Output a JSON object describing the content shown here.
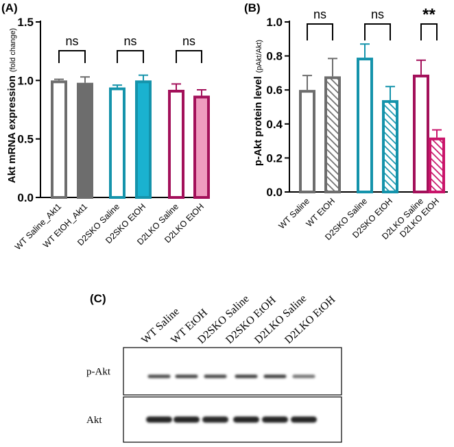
{
  "colors": {
    "wt": "#6d6d6d",
    "d2sko": "#1493ab",
    "d2sko_fill": "#1ab2d0",
    "d2lko": "#a3105a",
    "d2lko_fill": "#ef9bbf",
    "d2lko_hatch": "#c9146a"
  },
  "chart_data": [
    {
      "panel": "(A)",
      "type": "bar",
      "ylabel": "Akt mRNA expression",
      "ylabel_unit": "(fold change)",
      "ylim": [
        0,
        1.5
      ],
      "yticks": [
        "0.0",
        "0.5",
        "1.0",
        "1.5"
      ],
      "ytick_values": [
        0,
        0.5,
        1.0,
        1.5
      ],
      "categories": [
        "WT Saline_Akt1",
        "WT EtOH_Akt1",
        "D2SKO Saline",
        "D2SKO EtOH",
        "D2LKO Saline",
        "D2LKO EtOH"
      ],
      "values": [
        1.0,
        0.98,
        0.94,
        1.0,
        0.92,
        0.87
      ],
      "errors": [
        0.01,
        0.05,
        0.02,
        0.045,
        0.05,
        0.05
      ],
      "styles": [
        "open",
        "solid",
        "open",
        "solid",
        "open",
        "solid"
      ],
      "groups": [
        "wt",
        "wt",
        "d2sko",
        "d2sko",
        "d2lko",
        "d2lko"
      ],
      "annotations": [
        "ns",
        "ns",
        "ns"
      ]
    },
    {
      "panel": "(B)",
      "type": "bar",
      "ylabel": "p-Akt protein level",
      "ylabel_unit": "(pAkt/Akt)",
      "ylim": [
        0,
        1.0
      ],
      "yticks": [
        "0.0",
        "0.2",
        "0.4",
        "0.6",
        "0.8",
        "1.0"
      ],
      "ytick_values": [
        0,
        0.2,
        0.4,
        0.6,
        0.8,
        1.0
      ],
      "categories": [
        "WT Saline",
        "WT EtOH",
        "D2SKO Saline",
        "D2SKO EtOH",
        "D2LKO Saline",
        "D2LKO EtOH"
      ],
      "values": [
        0.6,
        0.68,
        0.79,
        0.54,
        0.69,
        0.32
      ],
      "errors": [
        0.085,
        0.105,
        0.08,
        0.08,
        0.085,
        0.045
      ],
      "styles": [
        "open",
        "hatched",
        "open",
        "hatched",
        "open",
        "hatched"
      ],
      "groups": [
        "wt",
        "wt",
        "d2sko",
        "d2sko",
        "d2lko",
        "d2lko"
      ],
      "annotations": [
        "ns",
        "ns",
        "**"
      ]
    }
  ],
  "blot": {
    "panel": "(C)",
    "lanes": [
      "WT Saline",
      "WT EtOH",
      "D2SKO Saline",
      "D2SKO EtOH",
      "D2LKO Saline",
      "D2LKO EtOH"
    ],
    "rows": [
      {
        "label": "p-Akt",
        "band_intensity": [
          0.75,
          0.8,
          0.78,
          0.82,
          0.85,
          0.45
        ]
      },
      {
        "label": "Akt",
        "band_intensity": [
          1.0,
          1.0,
          0.98,
          1.0,
          1.0,
          1.0
        ]
      }
    ]
  }
}
